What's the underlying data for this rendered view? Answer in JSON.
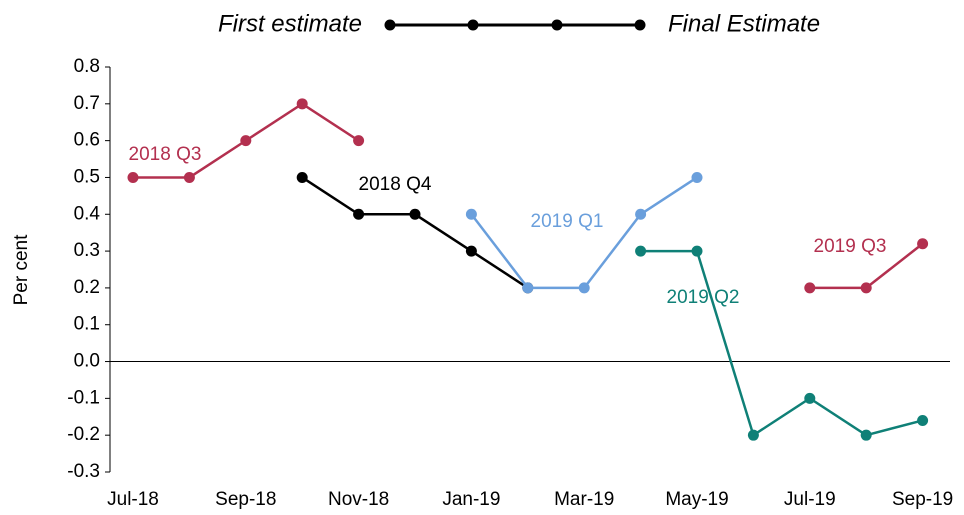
{
  "chart_data": {
    "type": "line",
    "y_label": "Per cent",
    "annotations": {
      "start": "First estimate",
      "end": "Final Estimate"
    },
    "categories": [
      "Jul-18",
      null,
      "Sep-18",
      null,
      "Nov-18",
      null,
      "Jan-19",
      null,
      "Mar-19",
      null,
      "May-19",
      null,
      "Jul-19",
      null,
      "Sep-19"
    ],
    "series": [
      {
        "name": "2018 Q3",
        "color": "#b3304f",
        "values": [
          0.5,
          0.5,
          0.6,
          0.7,
          0.6,
          null,
          null,
          null,
          null,
          null,
          null,
          null,
          null,
          null,
          null
        ]
      },
      {
        "name": "2018 Q4",
        "color": "#000000",
        "values": [
          null,
          null,
          null,
          0.5,
          0.4,
          0.4,
          0.3,
          0.2,
          null,
          null,
          null,
          null,
          null,
          null,
          null
        ]
      },
      {
        "name": "2019 Q1",
        "color": "#6a9fdc",
        "values": [
          null,
          null,
          null,
          null,
          null,
          null,
          0.4,
          0.2,
          0.2,
          0.4,
          0.5,
          null,
          null,
          null,
          null
        ]
      },
      {
        "name": "2019 Q2",
        "color": "#0f8077",
        "values": [
          null,
          null,
          null,
          null,
          null,
          null,
          null,
          null,
          null,
          0.3,
          0.3,
          -0.2,
          -0.1,
          -0.2,
          -0.16
        ]
      },
      {
        "name": "2019 Q3",
        "color": "#b3304f",
        "values": [
          null,
          null,
          null,
          null,
          null,
          null,
          null,
          null,
          null,
          null,
          null,
          null,
          0.2,
          0.2,
          0.32
        ]
      }
    ],
    "ylim": [
      -0.3,
      0.8
    ],
    "yticks": [
      -0.3,
      -0.2,
      -0.1,
      {
        "value": 0,
        "label": "0.0"
      },
      0.1,
      0.2,
      0.3,
      0.4,
      0.5,
      0.6,
      0.7,
      0.8
    ],
    "grid": false
  }
}
